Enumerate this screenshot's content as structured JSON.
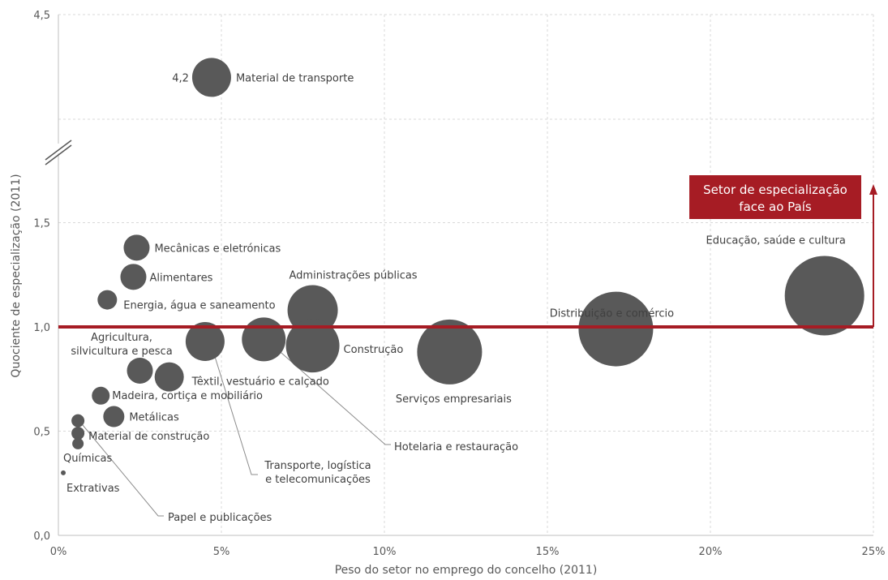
{
  "chart_data": {
    "type": "scatter",
    "subtype": "bubble",
    "title": "",
    "xlabel": "Peso do setor no emprego do concelho (2011)",
    "ylabel": "Quociente de especialização (2011)",
    "xlim": [
      0,
      25
    ],
    "ylim": [
      0,
      4.5
    ],
    "y_axis_break": true,
    "x_ticks": [
      "0%",
      "5%",
      "10%",
      "15%",
      "20%",
      "25%"
    ],
    "y_ticks": [
      "0,0",
      "0,5",
      "1,0",
      "1,5",
      "4,5"
    ],
    "grid": true,
    "bubble_color": "#595959",
    "threshold_line": {
      "y": 1.0,
      "color": "#a61c24"
    },
    "annotation": {
      "text_line1": "Setor de especialização",
      "text_line2": "face ao País",
      "color": "#a61c24"
    },
    "highlight_value_label": "4,2",
    "points": [
      {
        "name": "Material de transporte",
        "x": 4.7,
        "y": 4.2
      },
      {
        "name": "Mecânicas e eletrónicas",
        "x": 2.4,
        "y": 1.38
      },
      {
        "name": "Alimentares",
        "x": 2.3,
        "y": 1.24
      },
      {
        "name": "Energia, água e saneamento",
        "x": 1.5,
        "y": 1.13
      },
      {
        "name": "Administrações públicas",
        "x": 7.8,
        "y": 1.08
      },
      {
        "name": "Distribuição e comércio",
        "x": 17.1,
        "y": 0.99
      },
      {
        "name": "Educação, saúde e cultura",
        "x": 23.5,
        "y": 1.15
      },
      {
        "name": "Transporte, logística e telecomunicações",
        "x": 4.5,
        "y": 0.93
      },
      {
        "name": "Hotelaria e restauração",
        "x": 6.3,
        "y": 0.94
      },
      {
        "name": "Construção",
        "x": 7.8,
        "y": 0.91
      },
      {
        "name": "Serviços empresariais",
        "x": 12.0,
        "y": 0.88
      },
      {
        "name": "Agricultura, silvicultura e pesca",
        "x": 2.5,
        "y": 0.79
      },
      {
        "name": "Têxtil, vestuário e calçado",
        "x": 3.4,
        "y": 0.76
      },
      {
        "name": "Madeira, cortiça e mobiliário",
        "x": 1.3,
        "y": 0.67
      },
      {
        "name": "Metálicas",
        "x": 1.7,
        "y": 0.57
      },
      {
        "name": "Papel e publicações",
        "x": 0.6,
        "y": 0.55
      },
      {
        "name": "Material de construção",
        "x": 0.6,
        "y": 0.49
      },
      {
        "name": "Químicas",
        "x": 0.6,
        "y": 0.44
      },
      {
        "name": "Extrativas",
        "x": 0.15,
        "y": 0.3
      }
    ]
  }
}
